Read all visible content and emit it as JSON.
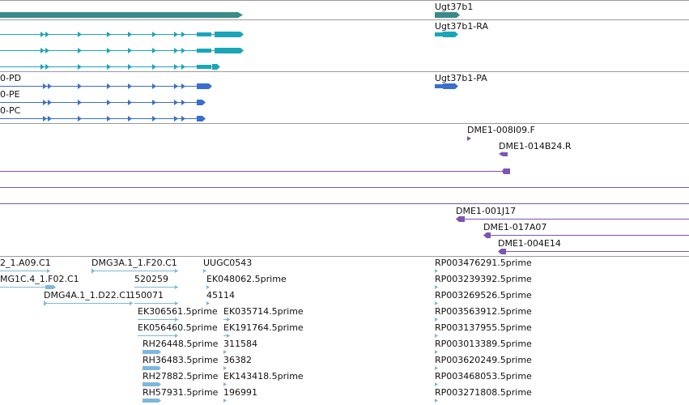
{
  "colors": {
    "gene": "#3a8a8a",
    "transcript_ra": "#1aa6b8",
    "transcript_pa": "#3a6fd0",
    "clone": "#7d55b0",
    "est": "#7db7dc",
    "separator": "#9a9a9a"
  },
  "tracks": {
    "gene": {
      "label": "Ugt37b1"
    },
    "transcripts_ra": {
      "label": "Ugt37b1-RA"
    },
    "proteins": {
      "labels": [
        "0-PD",
        "0-PE",
        "0-PC"
      ],
      "right_label": "Ugt37b1-PA"
    },
    "clone_ends": {
      "labels": [
        "DME1-008I09.F",
        "DME1-014B24.R"
      ]
    },
    "clones": {
      "labels": [
        "DME1-001J17",
        "DME1-017A07",
        "DME1-004E14"
      ]
    },
    "ests": {
      "left_labels": [
        "2_1.A09.C1",
        "MG1C.4_1.F02.C1",
        "DMG3A.1_1.F20.C1",
        "DMG4A.1_1.D22.C1",
        "UUGC0543",
        "520259",
        "EK048062.5prime",
        "150071",
        "45114",
        "EK306561.5prime",
        "EK035714.5prime",
        "EK056460.5prime",
        "EK191764.5prime",
        "RH26448.5prime",
        "311584",
        "RH36483.5prime",
        "36382",
        "RH27882.5prime",
        "EK143418.5prime",
        "RH57931.5prime",
        "196991"
      ],
      "right_labels": [
        "RP003476291.5prime",
        "RP003239392.5prime",
        "RP003269526.5prime",
        "RP003563912.5prime",
        "RP003137955.5prime",
        "RP003013389.5prime",
        "RP003620249.5prime",
        "RP003468053.5prime",
        "RP003271808.5prime"
      ]
    }
  }
}
